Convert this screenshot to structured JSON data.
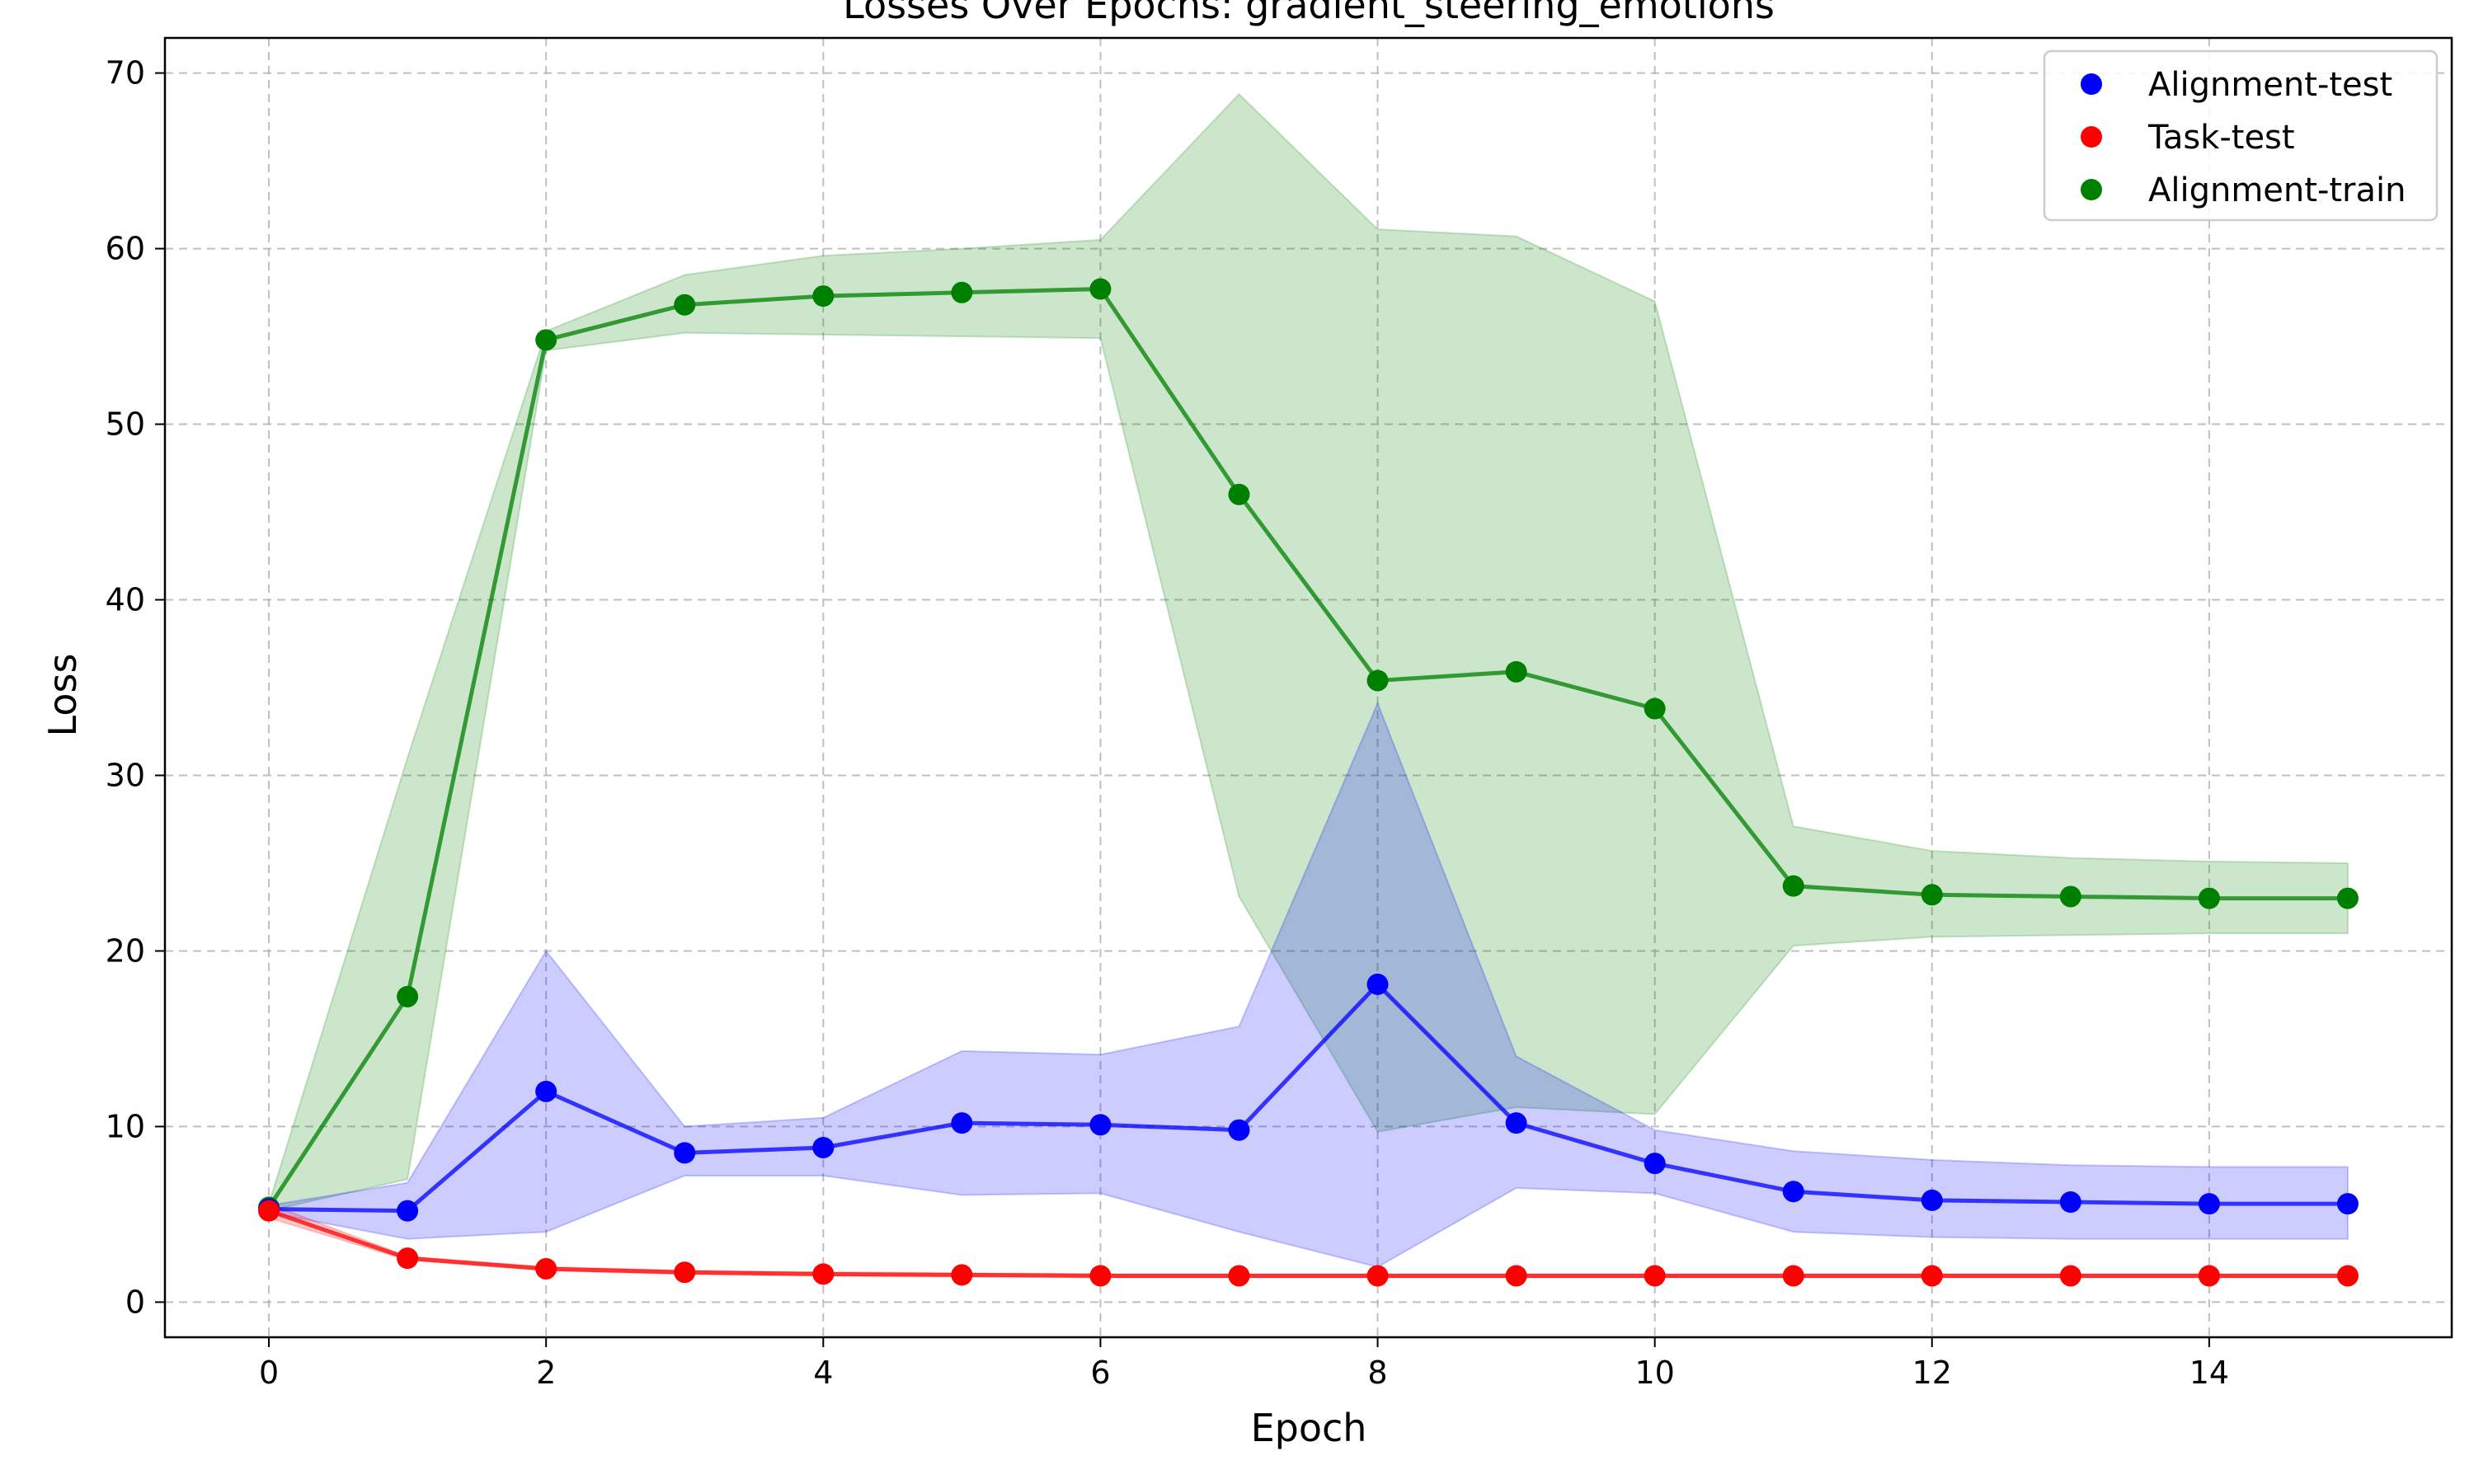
{
  "chart_data": {
    "type": "line",
    "title": "Losses Over Epochs: gradient_steering_emotions",
    "xlabel": "Epoch",
    "ylabel": "Loss",
    "xlim": [
      -0.75,
      15.75
    ],
    "ylim": [
      -2,
      72
    ],
    "xticks": [
      0,
      2,
      4,
      6,
      8,
      10,
      12,
      14
    ],
    "yticks": [
      0,
      10,
      20,
      30,
      40,
      50,
      60,
      70
    ],
    "grid": true,
    "legend_position": "top-right",
    "x": [
      0,
      1,
      2,
      3,
      4,
      5,
      6,
      7,
      8,
      9,
      10,
      11,
      12,
      13,
      14,
      15
    ],
    "series": [
      {
        "name": "Alignment-train",
        "color": "#008000",
        "values": [
          5.4,
          17.4,
          54.8,
          56.8,
          57.3,
          57.5,
          57.7,
          46.0,
          35.4,
          35.9,
          33.8,
          23.7,
          23.2,
          23.1,
          23.0,
          23.0
        ],
        "band_upper": [
          5.6,
          31.0,
          55.3,
          58.5,
          59.6,
          60.0,
          60.5,
          68.8,
          61.1,
          60.7,
          57.0,
          27.1,
          25.7,
          25.3,
          25.1,
          25.0
        ],
        "band_lower": [
          5.2,
          7.0,
          54.2,
          55.2,
          55.1,
          55.0,
          54.9,
          23.1,
          9.7,
          11.1,
          10.7,
          20.3,
          20.8,
          20.9,
          21.0,
          21.0
        ]
      },
      {
        "name": "Alignment-test",
        "color": "#0000ff",
        "values": [
          5.3,
          5.2,
          12.0,
          8.5,
          8.8,
          10.2,
          10.1,
          9.8,
          18.1,
          10.2,
          7.9,
          6.3,
          5.8,
          5.7,
          5.6,
          5.6
        ],
        "band_upper": [
          5.5,
          6.8,
          20.0,
          10.0,
          10.5,
          14.3,
          14.1,
          15.7,
          34.1,
          14.0,
          9.8,
          8.6,
          8.1,
          7.8,
          7.7,
          7.7
        ],
        "band_lower": [
          5.1,
          3.6,
          4.0,
          7.2,
          7.2,
          6.1,
          6.2,
          4.0,
          2.0,
          6.5,
          6.2,
          4.0,
          3.7,
          3.6,
          3.6,
          3.6
        ]
      },
      {
        "name": "Task-test",
        "color": "#ff0000",
        "values": [
          5.2,
          2.5,
          1.9,
          1.7,
          1.6,
          1.55,
          1.5,
          1.5,
          1.5,
          1.5,
          1.5,
          1.5,
          1.5,
          1.5,
          1.5,
          1.5
        ],
        "band_upper": [
          5.6,
          2.6,
          2.0,
          1.8,
          1.7,
          1.65,
          1.6,
          1.6,
          1.6,
          1.6,
          1.6,
          1.6,
          1.6,
          1.6,
          1.6,
          1.6
        ],
        "band_lower": [
          4.8,
          2.4,
          1.8,
          1.6,
          1.5,
          1.45,
          1.4,
          1.4,
          1.4,
          1.4,
          1.4,
          1.4,
          1.4,
          1.4,
          1.4,
          1.4
        ]
      }
    ],
    "legend_order": [
      "Alignment-test",
      "Task-test",
      "Alignment-train"
    ]
  }
}
